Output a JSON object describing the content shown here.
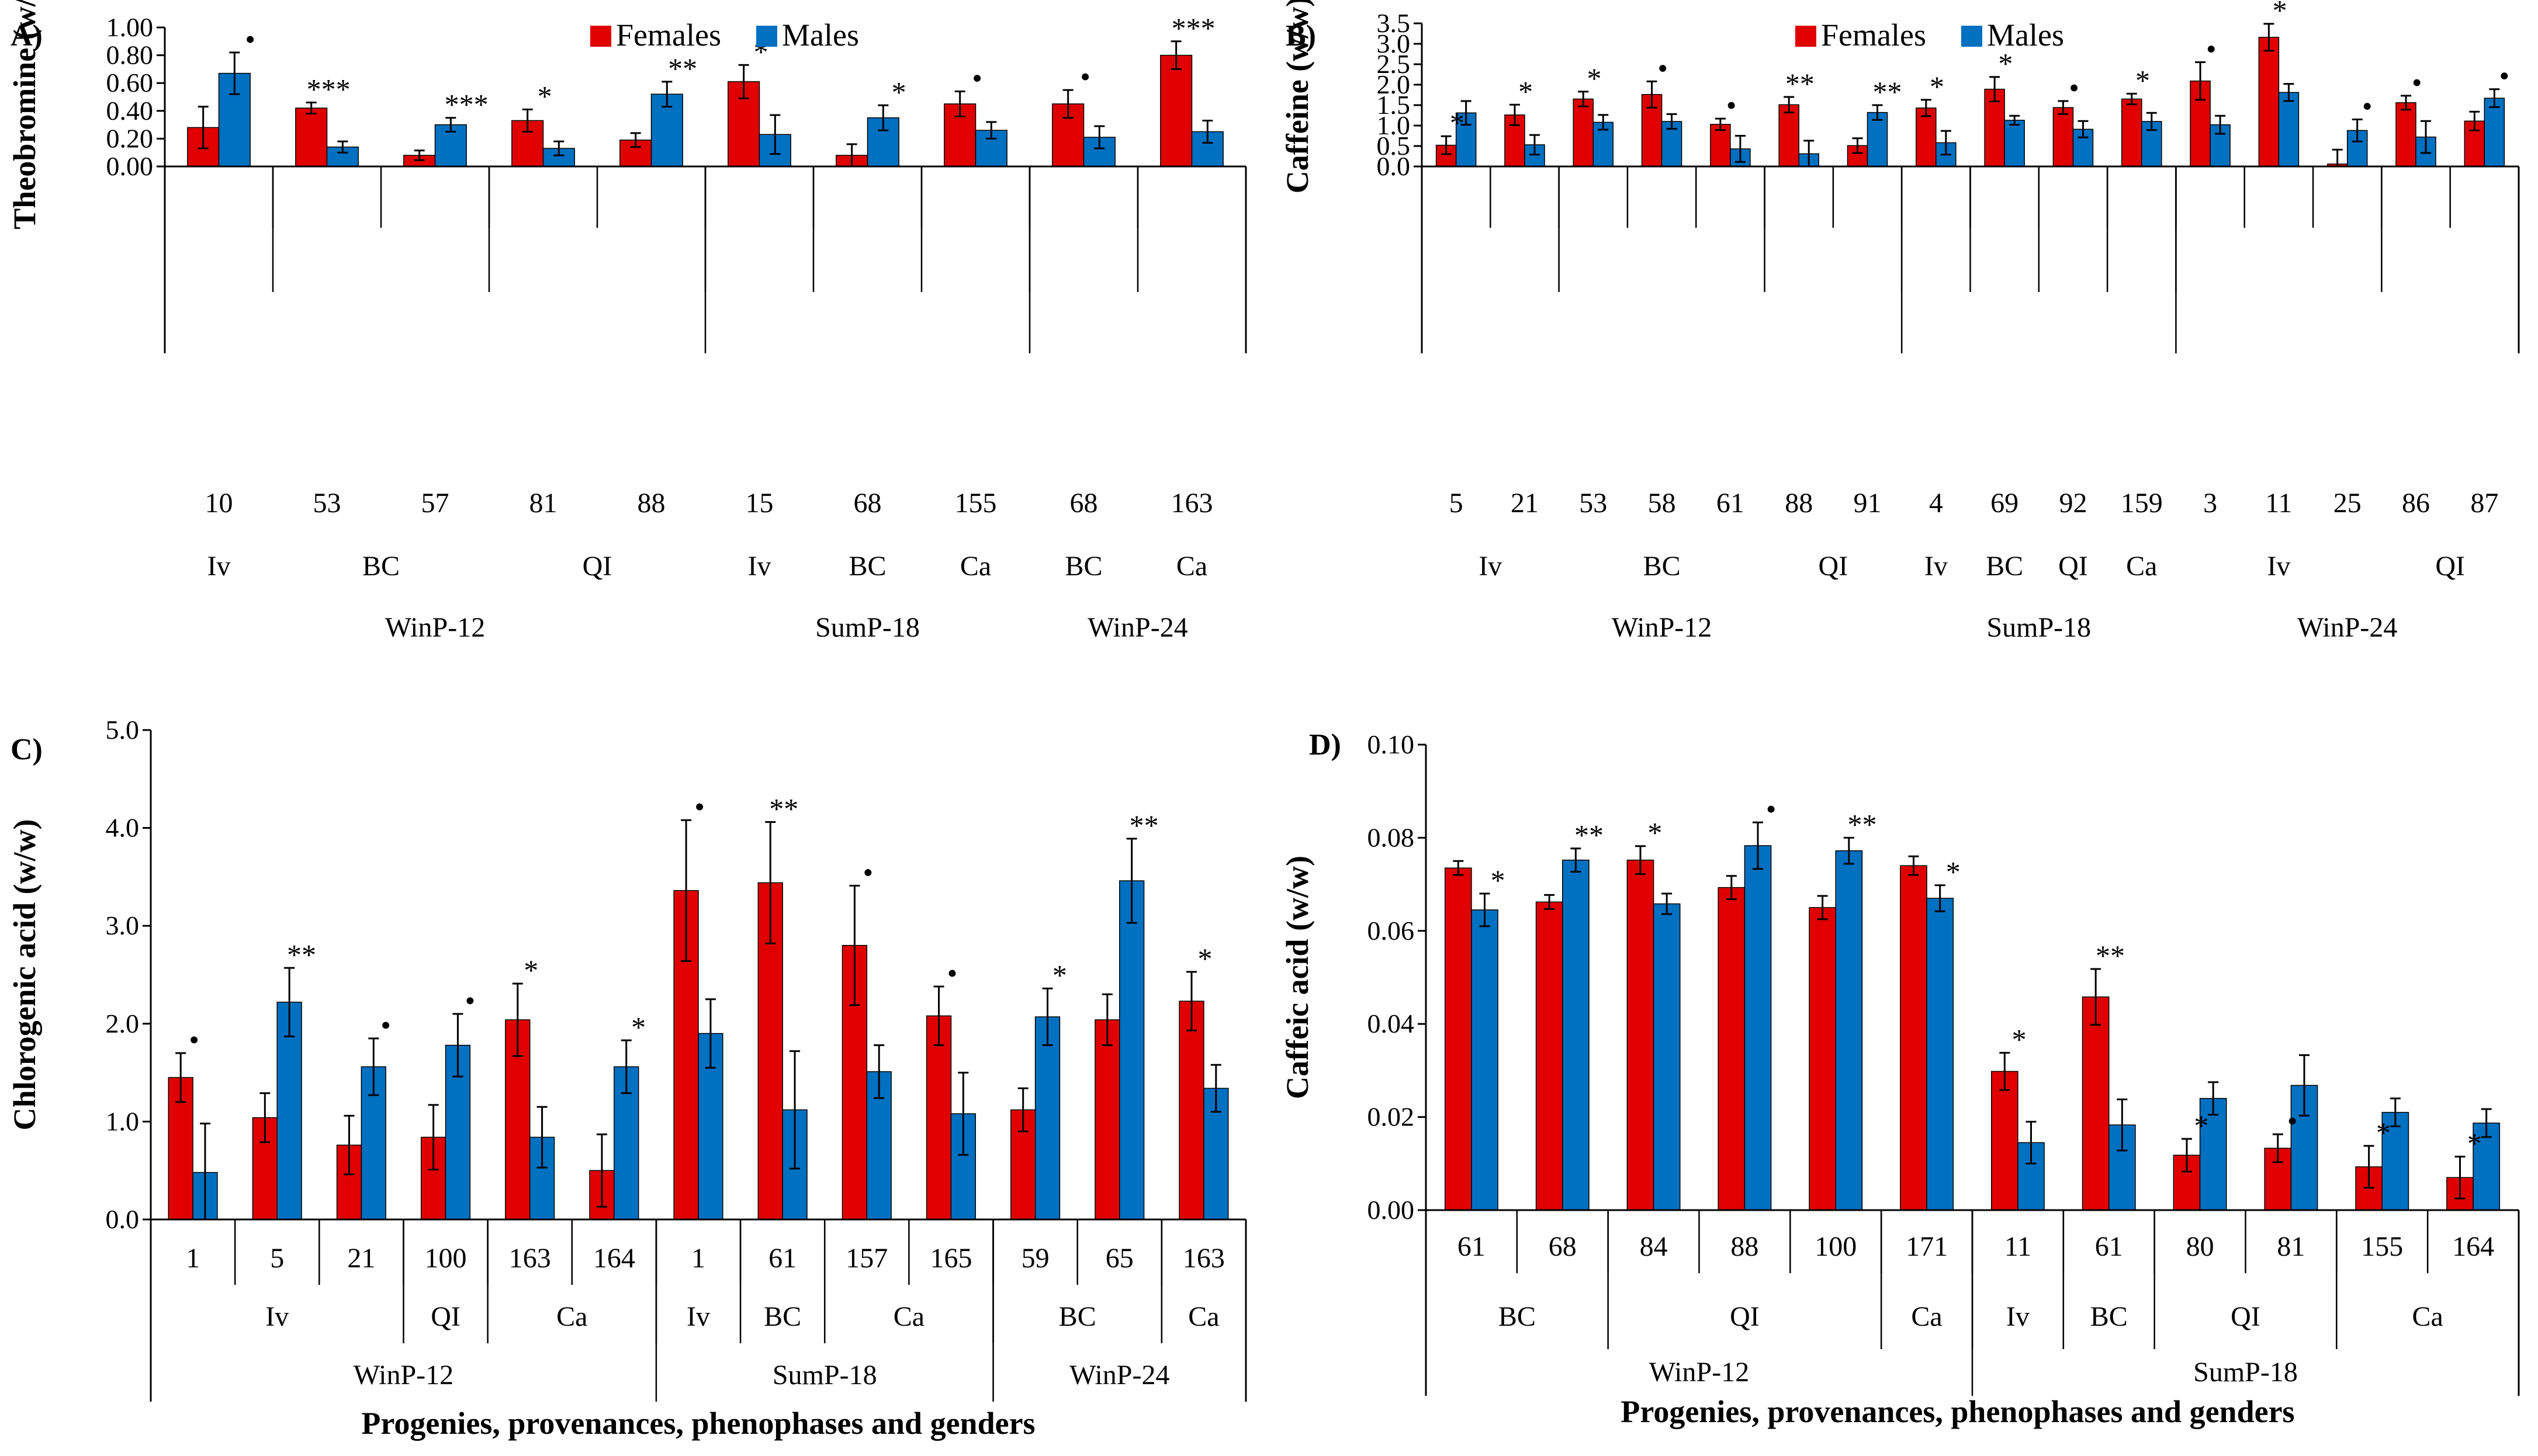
{
  "colors": {
    "females": "#E00000",
    "males": "#0070C0",
    "axis": "#000000",
    "errorbar": "#000000"
  },
  "xlabel_common": "Progenies, provenances, phenophases and genders",
  "chart_data": [
    {
      "panel": "A)",
      "type": "bar",
      "ylabel": "Theobromine (w/w)",
      "ylim": [
        0,
        1.0
      ],
      "yticks": [
        "0.00",
        "0.20",
        "0.40",
        "0.60",
        "0.80",
        "1.00"
      ],
      "legend": [
        "Females",
        "Males"
      ],
      "legend_position": "top",
      "categories": [
        "10",
        "53",
        "57",
        "81",
        "88",
        "15",
        "68",
        "155",
        "68",
        "163"
      ],
      "series": [
        {
          "name": "Females",
          "values": [
            0.28,
            0.42,
            0.08,
            0.33,
            0.19,
            0.61,
            0.08,
            0.45,
            0.45,
            0.8
          ],
          "errors": [
            0.15,
            0.04,
            0.035,
            0.08,
            0.05,
            0.12,
            0.08,
            0.09,
            0.1,
            0.1
          ]
        },
        {
          "name": "Males",
          "values": [
            0.67,
            0.14,
            0.3,
            0.13,
            0.52,
            0.23,
            0.35,
            0.26,
            0.21,
            0.25
          ],
          "errors": [
            0.15,
            0.04,
            0.05,
            0.05,
            0.09,
            0.14,
            0.09,
            0.06,
            0.08,
            0.08
          ]
        }
      ],
      "significance": [
        "•",
        "***",
        "***",
        "*",
        "**",
        "*",
        "*",
        "•",
        "•",
        "***"
      ],
      "sig_side": [
        "m",
        "f",
        "m",
        "f",
        "m",
        "f",
        "m",
        "f",
        "f",
        "f"
      ],
      "groups1": [
        {
          "label": "Iv",
          "span": 1
        },
        {
          "label": "BC",
          "span": 2
        },
        {
          "label": "QI",
          "span": 2
        },
        {
          "label": "Iv",
          "span": 1
        },
        {
          "label": "BC",
          "span": 1
        },
        {
          "label": "Ca",
          "span": 1
        },
        {
          "label": "BC",
          "span": 1
        },
        {
          "label": "Ca",
          "span": 1
        }
      ],
      "groups2": [
        {
          "label": "WinP-12",
          "span": 5
        },
        {
          "label": "SumP-18",
          "span": 3
        },
        {
          "label": "WinP-24",
          "span": 2
        }
      ]
    },
    {
      "panel": "B)",
      "type": "bar",
      "ylabel": "Caffeine (w/w)",
      "ylim": [
        0,
        3.5
      ],
      "yticks": [
        "0.0",
        "0.5",
        "1.0",
        "1.5",
        "2.0",
        "2.5",
        "3.0",
        "3.5"
      ],
      "legend": [
        "Females",
        "Males"
      ],
      "legend_position": "top",
      "categories": [
        "5",
        "21",
        "53",
        "58",
        "61",
        "88",
        "91",
        "4",
        "69",
        "92",
        "159",
        "3",
        "11",
        "25",
        "86",
        "87"
      ],
      "series": [
        {
          "name": "Females",
          "values": [
            0.52,
            1.26,
            1.65,
            1.76,
            1.03,
            1.51,
            0.51,
            1.43,
            1.89,
            1.44,
            1.65,
            2.09,
            3.16,
            0.06,
            1.56,
            1.11
          ],
          "errors": [
            0.22,
            0.25,
            0.18,
            0.32,
            0.14,
            0.19,
            0.18,
            0.2,
            0.3,
            0.16,
            0.13,
            0.46,
            0.33,
            0.35,
            0.17,
            0.23
          ]
        },
        {
          "name": "Males",
          "values": [
            1.31,
            0.53,
            1.08,
            1.1,
            0.43,
            0.31,
            1.32,
            0.58,
            1.13,
            0.91,
            1.1,
            1.02,
            1.81,
            0.88,
            0.72,
            1.67
          ],
          "errors": [
            0.29,
            0.24,
            0.18,
            0.18,
            0.32,
            0.32,
            0.18,
            0.29,
            0.11,
            0.2,
            0.21,
            0.22,
            0.21,
            0.27,
            0.39,
            0.22
          ]
        }
      ],
      "significance": [
        "*",
        "*",
        "*",
        "•",
        "•",
        "**",
        "**",
        "*",
        "*",
        "•",
        "*",
        "•",
        "*",
        "•",
        "•",
        "•"
      ],
      "sig_side": [
        "f",
        "f",
        "f",
        "f",
        "f",
        "f",
        "m",
        "f",
        "f",
        "f",
        "f",
        "f",
        "f",
        "m",
        "f",
        "m"
      ],
      "groups1": [
        {
          "label": "Iv",
          "span": 2
        },
        {
          "label": "BC",
          "span": 3
        },
        {
          "label": "QI",
          "span": 2
        },
        {
          "label": "Iv",
          "span": 1
        },
        {
          "label": "BC",
          "span": 1
        },
        {
          "label": "QI",
          "span": 1
        },
        {
          "label": "Ca",
          "span": 1
        },
        {
          "label": "Iv",
          "span": 3
        },
        {
          "label": "QI",
          "span": 2
        }
      ],
      "groups2": [
        {
          "label": "WinP-12",
          "span": 7
        },
        {
          "label": "SumP-18",
          "span": 4
        },
        {
          "label": "WinP-24",
          "span": 5
        }
      ]
    },
    {
      "panel": "C)",
      "type": "bar",
      "ylabel": "Chlorogenic acid (w/w)",
      "ylim": [
        0,
        5.0
      ],
      "yticks": [
        "0.0",
        "1.0",
        "2.0",
        "3.0",
        "4.0",
        "5.0"
      ],
      "categories": [
        "1",
        "5",
        "21",
        "100",
        "163",
        "164",
        "1",
        "61",
        "157",
        "165",
        "59",
        "65",
        "163"
      ],
      "series": [
        {
          "name": "Females",
          "values": [
            1.45,
            1.04,
            0.76,
            0.84,
            2.04,
            0.5,
            3.36,
            3.44,
            2.8,
            2.08,
            1.12,
            2.04,
            2.23
          ],
          "errors": [
            0.25,
            0.25,
            0.3,
            0.33,
            0.37,
            0.37,
            0.72,
            0.62,
            0.61,
            0.3,
            0.22,
            0.26,
            0.3
          ]
        },
        {
          "name": "Males",
          "values": [
            0.48,
            2.22,
            1.56,
            1.78,
            0.84,
            1.56,
            1.9,
            1.12,
            1.51,
            1.08,
            2.07,
            3.46,
            1.34
          ],
          "errors": [
            0.5,
            0.35,
            0.29,
            0.32,
            0.31,
            0.27,
            0.35,
            0.6,
            0.27,
            0.42,
            0.29,
            0.43,
            0.24
          ]
        }
      ],
      "significance": [
        "•",
        "**",
        "•",
        "•",
        "*",
        "*",
        "•",
        "**",
        "•",
        "•",
        "*",
        "**",
        "*"
      ],
      "sig_side": [
        "f",
        "m",
        "m",
        "m",
        "f",
        "m",
        "f",
        "f",
        "f",
        "f",
        "m",
        "m",
        "f"
      ],
      "groups1": [
        {
          "label": "Iv",
          "span": 3
        },
        {
          "label": "QI",
          "span": 1
        },
        {
          "label": "Ca",
          "span": 2
        },
        {
          "label": "Iv",
          "span": 1
        },
        {
          "label": "BC",
          "span": 1
        },
        {
          "label": "Ca",
          "span": 2
        },
        {
          "label": "BC",
          "span": 2
        },
        {
          "label": "Ca",
          "span": 1
        }
      ],
      "groups2": [
        {
          "label": "WinP-12",
          "span": 6
        },
        {
          "label": "SumP-18",
          "span": 4
        },
        {
          "label": "WinP-24",
          "span": 3
        }
      ]
    },
    {
      "panel": "D)",
      "type": "bar",
      "ylabel": "Caffeic acid (w/w)",
      "ylim": [
        0,
        0.1
      ],
      "yticks": [
        "0.00",
        "0.02",
        "0.04",
        "0.06",
        "0.08",
        "0.10"
      ],
      "categories": [
        "61",
        "68",
        "84",
        "88",
        "100",
        "171",
        "11",
        "61",
        "80",
        "81",
        "155",
        "164"
      ],
      "series": [
        {
          "name": "Females",
          "values": [
            0.0735,
            0.0662,
            0.0752,
            0.0693,
            0.065,
            0.074,
            0.0298,
            0.0458,
            0.0118,
            0.0133,
            0.0093,
            0.007
          ],
          "errors": [
            0.0015,
            0.0015,
            0.003,
            0.0025,
            0.0025,
            0.002,
            0.004,
            0.006,
            0.0035,
            0.003,
            0.0045,
            0.0045
          ]
        },
        {
          "name": "Males",
          "values": [
            0.0645,
            0.0752,
            0.0658,
            0.0783,
            0.0772,
            0.067,
            0.0145,
            0.0183,
            0.024,
            0.0268,
            0.021,
            0.0187
          ],
          "errors": [
            0.0035,
            0.0025,
            0.0022,
            0.005,
            0.0028,
            0.0028,
            0.0045,
            0.0055,
            0.0035,
            0.0065,
            0.003,
            0.003
          ]
        }
      ],
      "significance": [
        "*",
        "**",
        "*",
        "•",
        "**",
        "*",
        "*",
        "**",
        "*",
        "•",
        "*",
        "*"
      ],
      "sig_side": [
        "m",
        "m",
        "f",
        "m",
        "m",
        "m",
        "f",
        "f",
        "f",
        "f",
        "f",
        "f"
      ],
      "groups1": [
        {
          "label": "BC",
          "span": 2
        },
        {
          "label": "QI",
          "span": 3
        },
        {
          "label": "Ca",
          "span": 1
        },
        {
          "label": "Iv",
          "span": 1
        },
        {
          "label": "BC",
          "span": 1
        },
        {
          "label": "QI",
          "span": 2
        },
        {
          "label": "Ca",
          "span": 2
        }
      ],
      "groups2": [
        {
          "label": "WinP-12",
          "span": 6
        },
        {
          "label": "SumP-18",
          "span": 6
        }
      ]
    }
  ]
}
